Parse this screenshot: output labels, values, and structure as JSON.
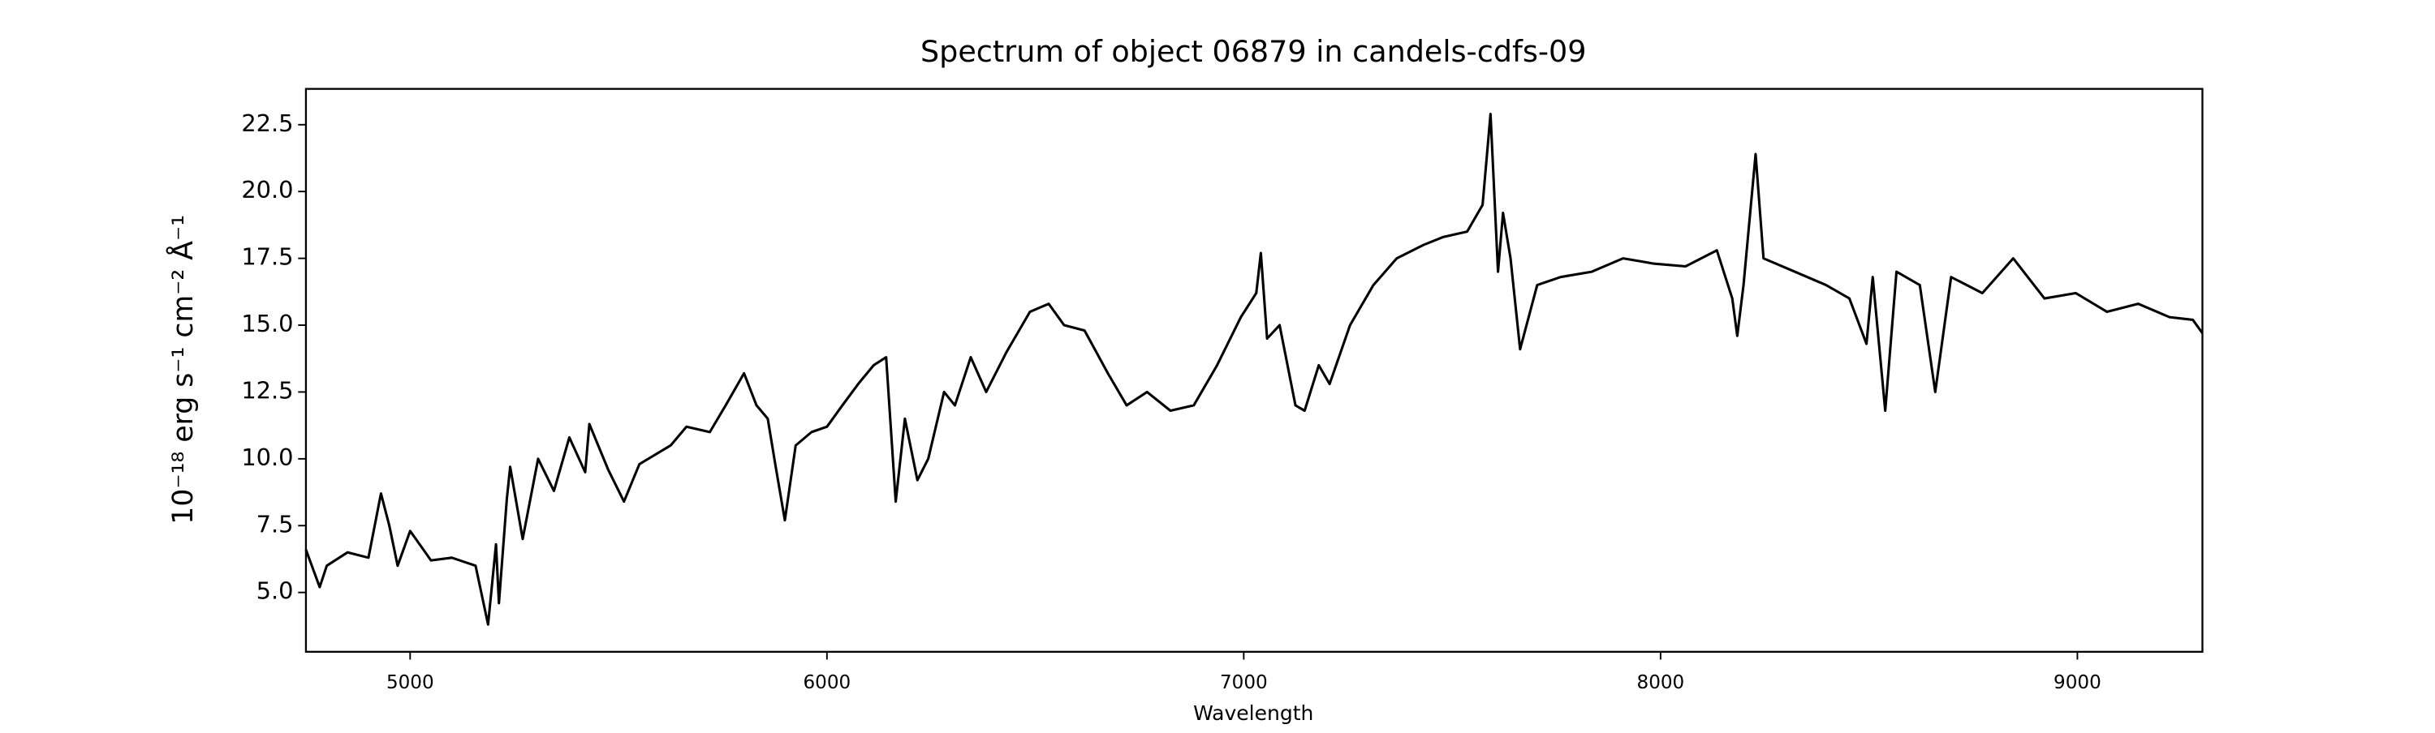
{
  "chart_data": {
    "type": "line",
    "title": "Spectrum of object 06879 in candels-cdfs-09",
    "xlabel": "Wavelength",
    "ylabel": "10⁻¹⁸ erg s⁻¹ cm⁻² Å⁻¹",
    "color": "#000000",
    "x": [
      4750,
      4783,
      4800,
      4850,
      4900,
      4930,
      4950,
      4970,
      5000,
      5050,
      5100,
      5157,
      5187,
      5206,
      5213,
      5232,
      5240,
      5270,
      5307,
      5345,
      5382,
      5420,
      5430,
      5475,
      5513,
      5550,
      5625,
      5663,
      5719,
      5757,
      5801,
      5831,
      5858,
      5876,
      5899,
      5925,
      5963,
      6000,
      6037,
      6075,
      6112,
      6142,
      6165,
      6187,
      6217,
      6243,
      6281,
      6307,
      6345,
      6382,
      6431,
      6487,
      6532,
      6569,
      6618,
      6674,
      6719,
      6768,
      6824,
      6880,
      6936,
      6993,
      7030,
      7041,
      7056,
      7086,
      7124,
      7146,
      7180,
      7206,
      7255,
      7311,
      7367,
      7431,
      7479,
      7536,
      7573,
      7592,
      7610,
      7622,
      7640,
      7663,
      7704,
      7760,
      7835,
      7910,
      7985,
      8060,
      8135,
      8172,
      8184,
      8199,
      8228,
      8247,
      8322,
      8397,
      8453,
      8494,
      8509,
      8539,
      8566,
      8622,
      8659,
      8697,
      8772,
      8846,
      8921,
      8996,
      9071,
      9146,
      9221,
      9277,
      9300
    ],
    "values": [
      6.6,
      5.2,
      6.0,
      6.5,
      6.3,
      8.7,
      7.5,
      6.0,
      7.3,
      6.2,
      6.3,
      6.0,
      3.8,
      6.8,
      4.6,
      8.5,
      9.7,
      7.0,
      10.0,
      8.8,
      10.8,
      9.5,
      11.3,
      9.6,
      8.4,
      9.8,
      10.5,
      11.2,
      11.0,
      12.0,
      13.2,
      12.0,
      11.5,
      9.8,
      7.7,
      10.5,
      11.0,
      11.2,
      12.0,
      12.8,
      13.5,
      13.8,
      8.4,
      11.5,
      9.2,
      10.0,
      12.5,
      12.0,
      13.8,
      12.5,
      14.0,
      15.5,
      15.8,
      15.0,
      14.8,
      13.2,
      12.0,
      12.5,
      11.8,
      12.0,
      13.5,
      15.3,
      16.2,
      17.7,
      14.5,
      15.0,
      12.0,
      11.8,
      13.5,
      12.8,
      15.0,
      16.5,
      17.5,
      18.0,
      18.3,
      18.5,
      19.5,
      22.9,
      17.0,
      19.2,
      17.5,
      14.1,
      16.5,
      16.8,
      17.0,
      17.5,
      17.3,
      17.2,
      17.8,
      16.0,
      14.6,
      16.5,
      21.4,
      17.5,
      17.0,
      16.5,
      16.0,
      14.3,
      16.8,
      11.8,
      17.0,
      16.5,
      12.5,
      16.8,
      16.2,
      17.5,
      16.0,
      16.2,
      15.5,
      15.8,
      15.3,
      15.2,
      14.7
    ],
    "xlim": [
      4750,
      9300
    ],
    "ylim": [
      2.78,
      23.84
    ],
    "xticks": [
      5000,
      6000,
      7000,
      8000,
      9000
    ],
    "yticks": [
      {
        "value": 5,
        "label": "5.0"
      },
      7.5,
      {
        "value": 10,
        "label": "10.0"
      },
      12.5,
      {
        "value": 15,
        "label": "15.0"
      },
      17.5,
      {
        "value": 20,
        "label": "20.0"
      },
      22.5
    ],
    "grid": false
  }
}
